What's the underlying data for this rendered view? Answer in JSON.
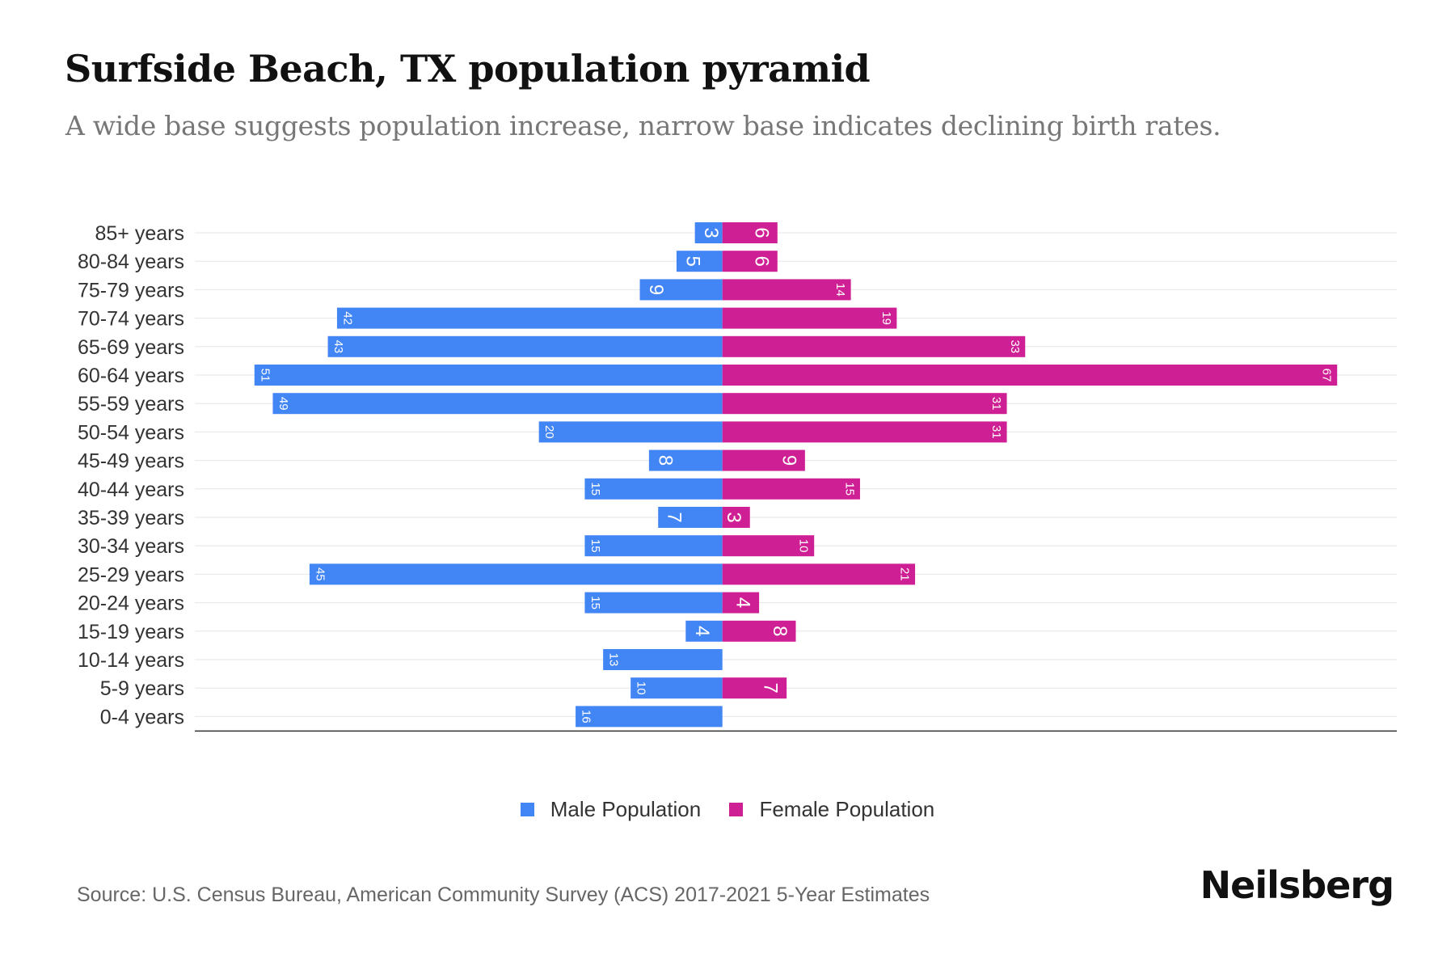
{
  "chart_data": {
    "type": "bar",
    "orientation": "horizontal-pyramid",
    "title": "Surfside Beach, TX population pyramid",
    "subtitle": "A wide base suggests population increase, narrow base indicates declining birth rates.",
    "categories": [
      "85+ years",
      "80-84 years",
      "75-79 years",
      "70-74 years",
      "65-69 years",
      "60-64 years",
      "55-59 years",
      "50-54 years",
      "45-49 years",
      "40-44 years",
      "35-39 years",
      "30-34 years",
      "25-29 years",
      "20-24 years",
      "15-19 years",
      "10-14 years",
      "5-9 years",
      "0-4 years"
    ],
    "series": [
      {
        "name": "Male Population",
        "color": "#4285f4",
        "values": [
          3,
          5,
          9,
          42,
          43,
          51,
          49,
          20,
          8,
          15,
          7,
          15,
          45,
          15,
          4,
          13,
          10,
          16
        ]
      },
      {
        "name": "Female Population",
        "color": "#cf1f95",
        "values": [
          6,
          6,
          14,
          19,
          33,
          67,
          31,
          31,
          9,
          15,
          3,
          10,
          21,
          4,
          8,
          0,
          7,
          0
        ]
      }
    ],
    "xlim": [
      -57.5,
      73.5
    ],
    "grid": true,
    "legend_position": "bottom-center"
  },
  "source": "Source: U.S. Census Bureau, American Community Survey (ACS) 2017-2021 5-Year Estimates",
  "brand": "Neilsberg",
  "colors": {
    "male": "#4285f4",
    "female": "#cf1f95",
    "grid": "#e6e6e6",
    "axis": "#333333"
  }
}
